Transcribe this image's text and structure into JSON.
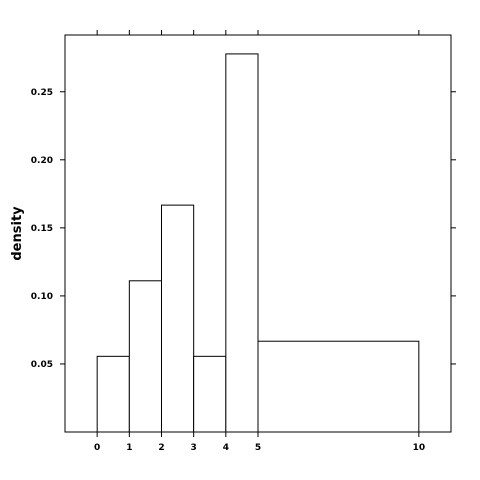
{
  "chart_data": {
    "type": "bar",
    "ylabel": "density",
    "xlim": [
      -1,
      11
    ],
    "ylim": [
      0,
      0.2917
    ],
    "bins": [
      {
        "x0": 0,
        "x1": 1,
        "density": 0.0556
      },
      {
        "x0": 1,
        "x1": 2,
        "density": 0.1111
      },
      {
        "x0": 2,
        "x1": 3,
        "density": 0.1667
      },
      {
        "x0": 3,
        "x1": 4,
        "density": 0.0556
      },
      {
        "x0": 4,
        "x1": 5,
        "density": 0.2778
      },
      {
        "x0": 5,
        "x1": 10,
        "density": 0.0667
      }
    ],
    "x_ticks": [
      0,
      1,
      2,
      3,
      4,
      5,
      10
    ],
    "y_ticks": [
      0.05,
      0.1,
      0.15,
      0.2,
      0.25
    ],
    "x_tick_labels": [
      "0",
      "1",
      "2",
      "3",
      "4",
      "5",
      "10"
    ],
    "y_tick_labels": [
      "0.05",
      "0.10",
      "0.15",
      "0.20",
      "0.25"
    ],
    "grid": false,
    "legend": "none",
    "colors": {
      "bar_fill": "#ffffff",
      "bar_stroke": "#000000",
      "frame": "#000000"
    }
  }
}
